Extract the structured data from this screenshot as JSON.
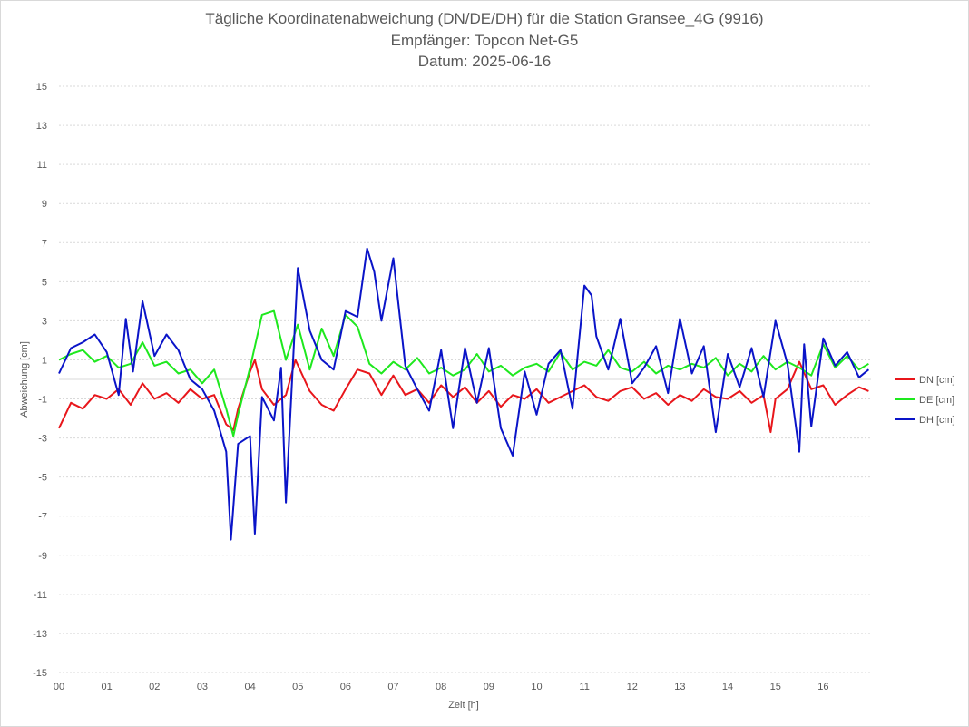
{
  "chart_data": {
    "type": "line",
    "title": "Tägliche Koordinatenabweichung (DN/DE/DH) für die Station Gransee_4G (9916)",
    "subtitle_1": "Empfänger: Topcon Net-G5",
    "subtitle_2": "Datum: 2025-06-16",
    "xlabel": "Zeit [h]",
    "ylabel": "Abweichung [cm]",
    "xlim": [
      0,
      17
    ],
    "ylim": [
      -15,
      15
    ],
    "y_ticks": [
      "15",
      "13",
      "11",
      "9",
      "7",
      "5",
      "3",
      "1",
      "-1",
      "-3",
      "-5",
      "-7",
      "-9",
      "-11",
      "-13",
      "-15"
    ],
    "x_ticks": [
      "00",
      "01",
      "02",
      "03",
      "04",
      "05",
      "06",
      "07",
      "08",
      "09",
      "10",
      "11",
      "12",
      "13",
      "14",
      "15",
      "16"
    ],
    "grid": true,
    "legend_position": "right",
    "series": [
      {
        "name": "DN [cm]",
        "color": "#e8161b",
        "x": [
          0.0,
          0.25,
          0.5,
          0.75,
          1.0,
          1.25,
          1.5,
          1.75,
          2.0,
          2.25,
          2.5,
          2.75,
          3.0,
          3.25,
          3.5,
          3.65,
          3.75,
          4.0,
          4.1,
          4.25,
          4.5,
          4.75,
          4.95,
          5.25,
          5.5,
          5.75,
          6.0,
          6.25,
          6.5,
          6.75,
          7.0,
          7.25,
          7.5,
          7.75,
          8.0,
          8.25,
          8.5,
          8.75,
          9.0,
          9.25,
          9.5,
          9.75,
          10.0,
          10.25,
          10.5,
          10.75,
          11.0,
          11.25,
          11.5,
          11.75,
          12.0,
          12.25,
          12.5,
          12.75,
          13.0,
          13.25,
          13.5,
          13.75,
          14.0,
          14.25,
          14.5,
          14.75,
          14.9,
          15.0,
          15.25,
          15.5,
          15.75,
          16.0,
          16.25,
          16.5,
          16.75,
          16.95
        ],
        "values": [
          -2.5,
          -1.2,
          -1.5,
          -0.8,
          -1.0,
          -0.5,
          -1.3,
          -0.2,
          -1.0,
          -0.7,
          -1.2,
          -0.5,
          -1.0,
          -0.8,
          -2.3,
          -2.6,
          -1.5,
          0.4,
          1.0,
          -0.5,
          -1.3,
          -0.8,
          1.0,
          -0.6,
          -1.3,
          -1.6,
          -0.5,
          0.5,
          0.3,
          -0.8,
          0.2,
          -0.8,
          -0.5,
          -1.2,
          -0.3,
          -0.9,
          -0.4,
          -1.2,
          -0.6,
          -1.4,
          -0.8,
          -1.0,
          -0.5,
          -1.2,
          -0.9,
          -0.6,
          -0.3,
          -0.9,
          -1.1,
          -0.6,
          -0.4,
          -1.0,
          -0.7,
          -1.3,
          -0.8,
          -1.1,
          -0.5,
          -0.9,
          -1.0,
          -0.6,
          -1.2,
          -0.8,
          -2.7,
          -1.0,
          -0.5,
          0.9,
          -0.5,
          -0.3,
          -1.3,
          -0.8,
          -0.4,
          -0.6
        ]
      },
      {
        "name": "DE [cm]",
        "color": "#1ee81e",
        "x": [
          0.0,
          0.25,
          0.5,
          0.75,
          1.0,
          1.25,
          1.5,
          1.75,
          2.0,
          2.25,
          2.5,
          2.75,
          3.0,
          3.25,
          3.5,
          3.65,
          3.75,
          4.0,
          4.25,
          4.5,
          4.6,
          4.75,
          5.0,
          5.25,
          5.5,
          5.75,
          6.0,
          6.25,
          6.5,
          6.75,
          7.0,
          7.25,
          7.5,
          7.75,
          8.0,
          8.25,
          8.5,
          8.75,
          9.0,
          9.25,
          9.5,
          9.75,
          10.0,
          10.25,
          10.5,
          10.75,
          11.0,
          11.25,
          11.5,
          11.75,
          12.0,
          12.25,
          12.5,
          12.75,
          13.0,
          13.25,
          13.5,
          13.75,
          14.0,
          14.25,
          14.5,
          14.75,
          15.0,
          15.25,
          15.5,
          15.75,
          16.0,
          16.25,
          16.5,
          16.75,
          16.95
        ],
        "values": [
          1.0,
          1.3,
          1.5,
          0.9,
          1.2,
          0.6,
          0.8,
          1.9,
          0.7,
          0.9,
          0.3,
          0.5,
          -0.2,
          0.5,
          -1.5,
          -2.9,
          -1.8,
          0.6,
          3.3,
          3.5,
          2.5,
          1.0,
          2.8,
          0.5,
          2.6,
          1.2,
          3.3,
          2.7,
          0.8,
          0.3,
          0.9,
          0.5,
          1.1,
          0.3,
          0.6,
          0.2,
          0.5,
          1.3,
          0.4,
          0.7,
          0.2,
          0.6,
          0.8,
          0.4,
          1.4,
          0.5,
          0.9,
          0.7,
          1.5,
          0.6,
          0.4,
          0.9,
          0.3,
          0.7,
          0.5,
          0.8,
          0.6,
          1.1,
          0.2,
          0.8,
          0.4,
          1.2,
          0.5,
          0.9,
          0.6,
          0.2,
          1.8,
          0.6,
          1.2,
          0.5,
          0.8
        ]
      },
      {
        "name": "DH [cm]",
        "color": "#0a14c8",
        "x": [
          0.0,
          0.25,
          0.5,
          0.75,
          1.0,
          1.25,
          1.4,
          1.55,
          1.75,
          2.0,
          2.25,
          2.5,
          2.75,
          3.0,
          3.25,
          3.5,
          3.6,
          3.75,
          4.0,
          4.1,
          4.25,
          4.5,
          4.65,
          4.75,
          5.0,
          5.25,
          5.5,
          5.75,
          6.0,
          6.25,
          6.45,
          6.6,
          6.75,
          7.0,
          7.25,
          7.5,
          7.75,
          8.0,
          8.25,
          8.5,
          8.75,
          9.0,
          9.25,
          9.5,
          9.75,
          10.0,
          10.25,
          10.5,
          10.75,
          11.0,
          11.15,
          11.25,
          11.5,
          11.75,
          12.0,
          12.25,
          12.5,
          12.75,
          13.0,
          13.25,
          13.5,
          13.75,
          14.0,
          14.25,
          14.5,
          14.75,
          15.0,
          15.25,
          15.5,
          15.6,
          15.75,
          16.0,
          16.25,
          16.5,
          16.75,
          16.95
        ],
        "values": [
          0.3,
          1.6,
          1.9,
          2.3,
          1.4,
          -0.8,
          3.1,
          0.4,
          4.0,
          1.2,
          2.3,
          1.5,
          0.0,
          -0.5,
          -1.6,
          -3.7,
          -8.2,
          -3.3,
          -2.9,
          -7.9,
          -0.9,
          -2.1,
          0.6,
          -6.3,
          5.7,
          2.5,
          1.0,
          0.5,
          3.5,
          3.2,
          6.7,
          5.5,
          3.0,
          6.2,
          0.7,
          -0.5,
          -1.6,
          1.5,
          -2.5,
          1.6,
          -1.2,
          1.6,
          -2.5,
          -3.9,
          0.4,
          -1.8,
          0.8,
          1.5,
          -1.5,
          4.8,
          4.3,
          2.2,
          0.5,
          3.1,
          -0.2,
          0.6,
          1.7,
          -0.7,
          3.1,
          0.3,
          1.7,
          -2.7,
          1.3,
          -0.4,
          1.6,
          -0.9,
          3.0,
          0.8,
          -3.7,
          1.8,
          -2.4,
          2.1,
          0.7,
          1.4,
          0.1,
          0.5
        ]
      }
    ]
  }
}
